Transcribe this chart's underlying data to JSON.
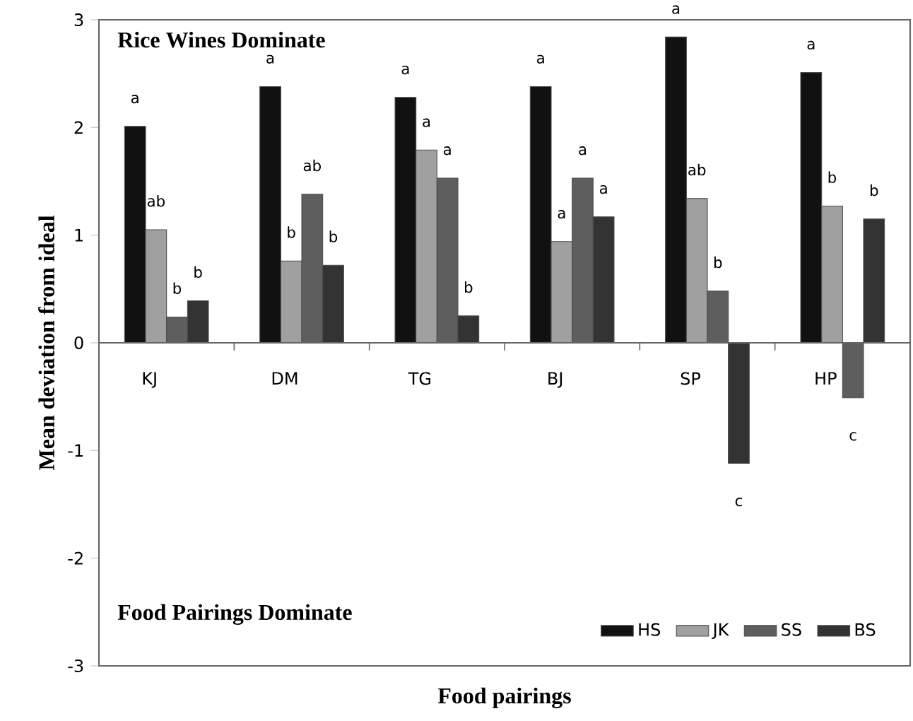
{
  "chart_data": {
    "type": "bar",
    "xlabel": "Food pairings",
    "ylabel": "Mean deviation from ideal",
    "categories": [
      "KJ",
      "DM",
      "TG",
      "BJ",
      "SP",
      "HP"
    ],
    "series": [
      {
        "name": "HS",
        "color": "#111111",
        "values": [
          2.01,
          2.38,
          2.28,
          2.38,
          2.84,
          2.51
        ]
      },
      {
        "name": "JK",
        "color": "#a0a0a0",
        "values": [
          1.05,
          0.76,
          1.79,
          0.94,
          1.34,
          1.27
        ]
      },
      {
        "name": "SS",
        "color": "#5e5e5e",
        "values": [
          0.24,
          1.38,
          1.53,
          1.53,
          0.48,
          -0.51
        ]
      },
      {
        "name": "BS",
        "color": "#333333",
        "values": [
          0.39,
          0.72,
          0.25,
          1.17,
          -1.12,
          1.15
        ]
      }
    ],
    "ylim": [
      -3,
      3
    ],
    "yticks": [
      -3,
      -2,
      -1,
      0,
      1,
      2,
      3
    ],
    "legend": "bottom right",
    "annotations": [
      "Rice Wines Dominate",
      "Food Pairings Dominate",
      "a",
      "ab",
      "b",
      "b",
      "a",
      "b",
      "ab",
      "b",
      "a",
      "a",
      "a",
      "b",
      "a",
      "a",
      "a",
      "a",
      "a",
      "ab",
      "b",
      "c",
      "a",
      "b",
      "c",
      "b"
    ]
  }
}
